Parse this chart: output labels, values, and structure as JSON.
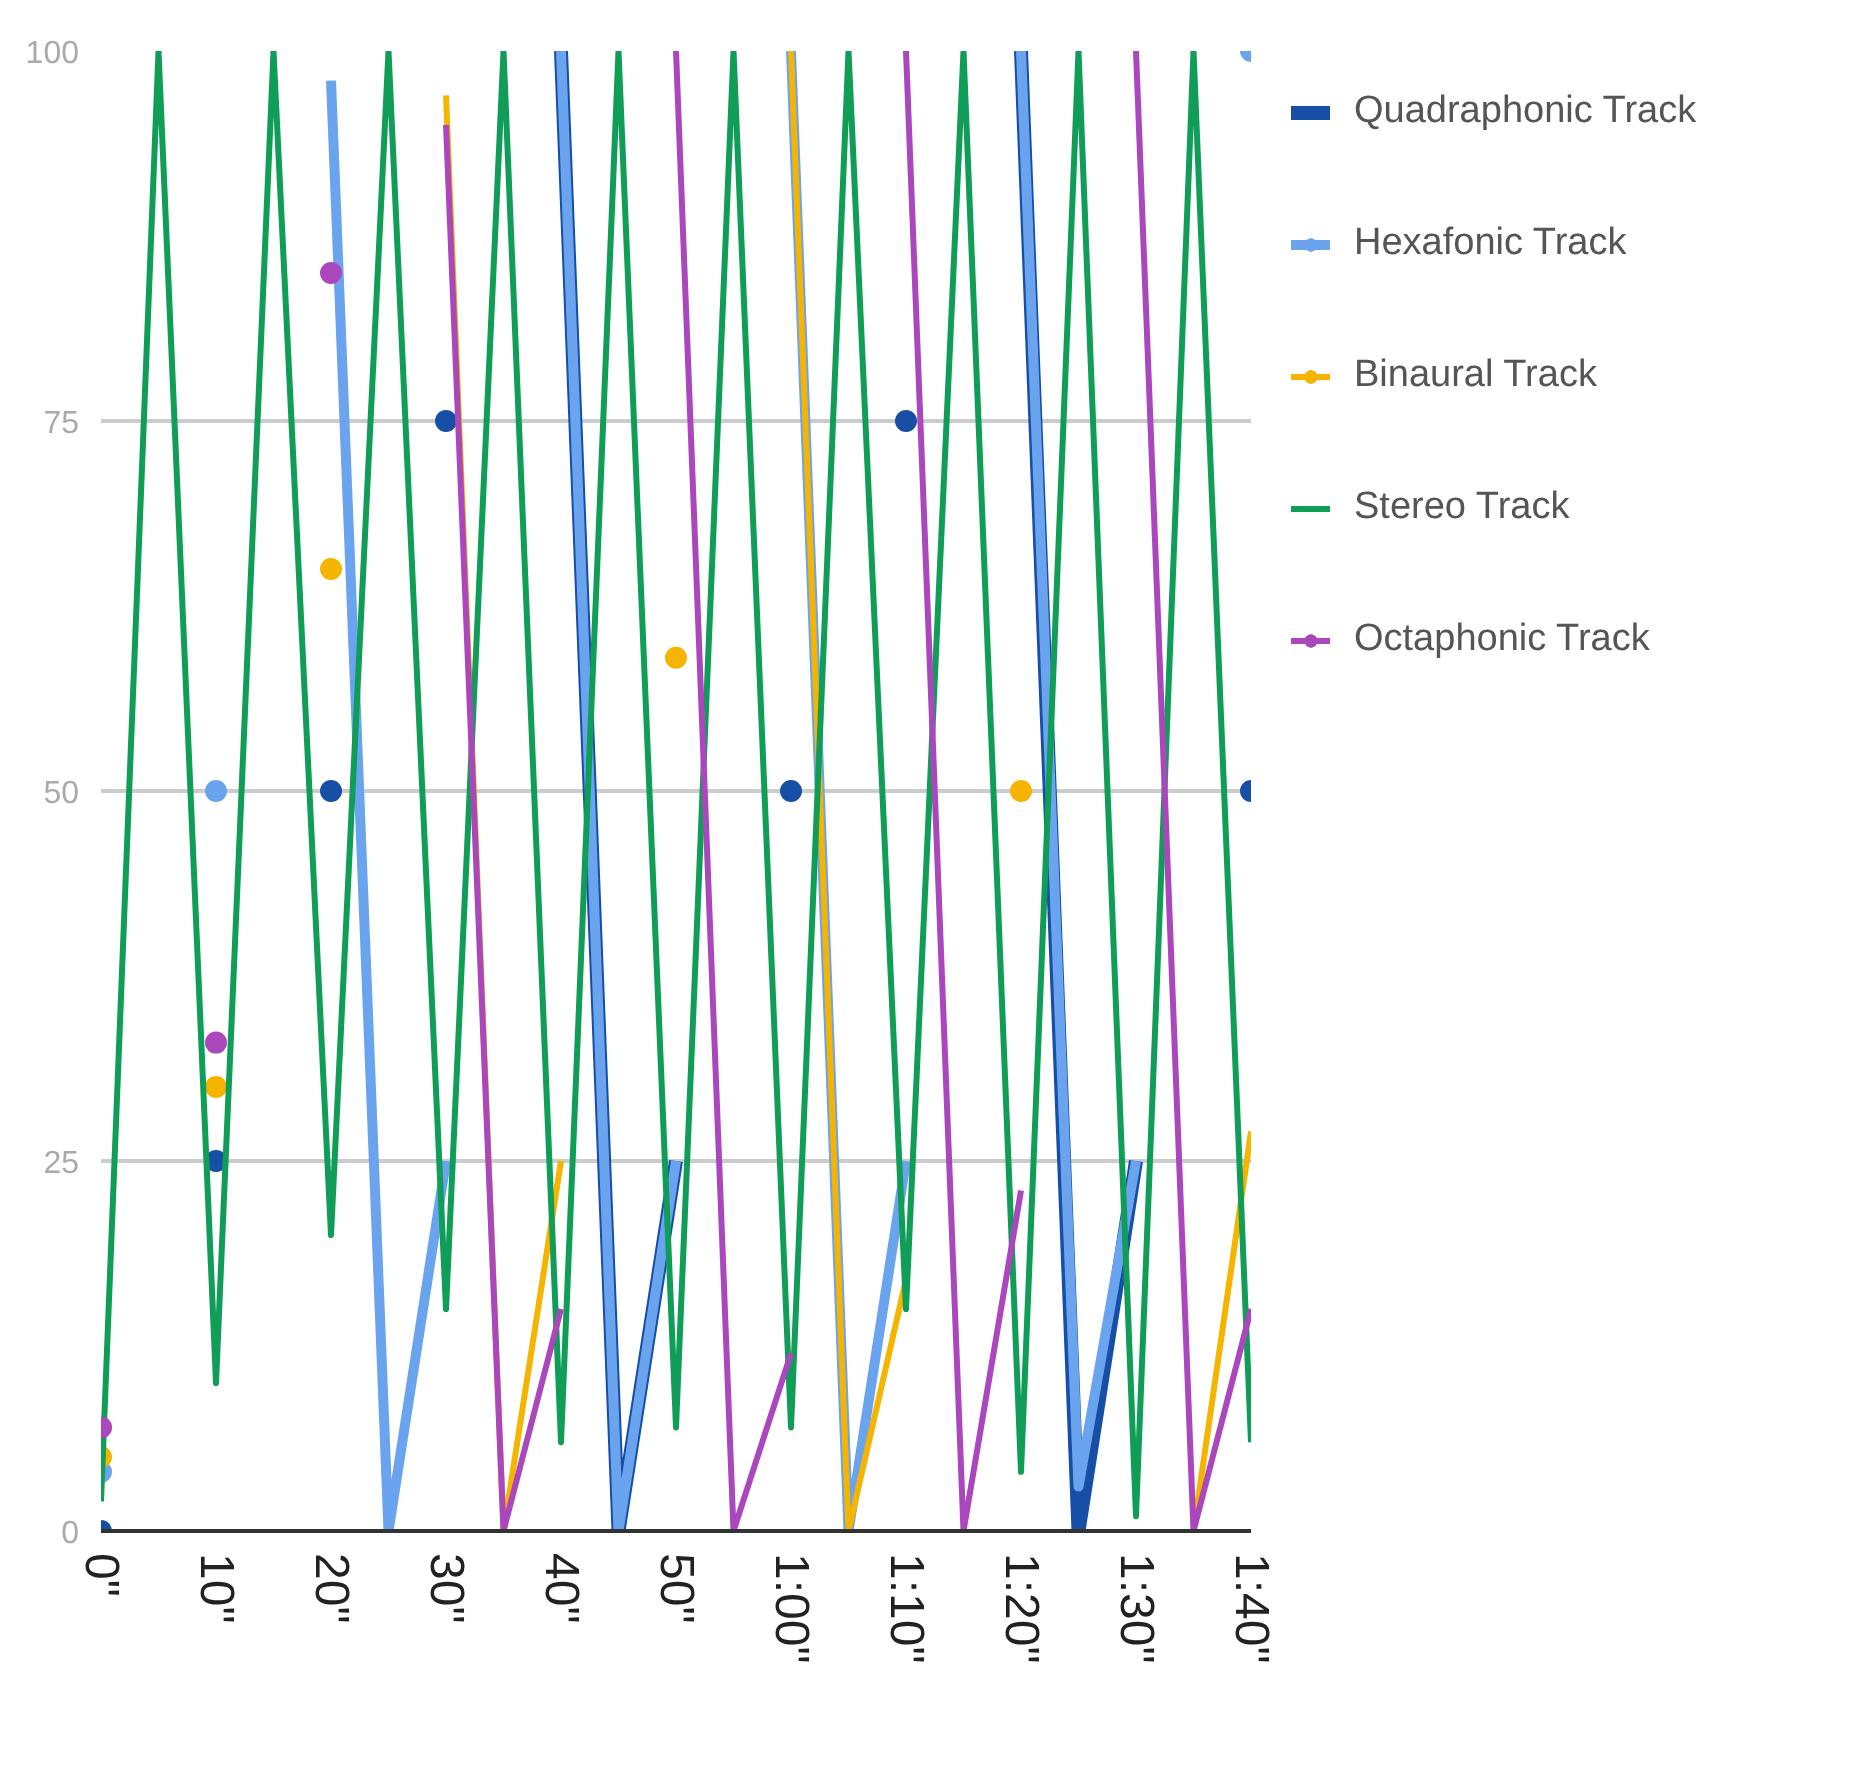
{
  "chart_data": {
    "type": "line",
    "x": [
      0,
      5,
      10,
      15,
      20,
      25,
      30,
      35,
      40,
      45,
      50,
      55,
      60,
      65,
      70,
      75,
      80,
      85,
      90,
      95,
      100
    ],
    "xlim": [
      0,
      100
    ],
    "xticks": [
      {
        "value": 0,
        "label": "0\""
      },
      {
        "value": 10,
        "label": "10\""
      },
      {
        "value": 20,
        "label": "20\""
      },
      {
        "value": 30,
        "label": "30\""
      },
      {
        "value": 40,
        "label": "40\""
      },
      {
        "value": 50,
        "label": "50\""
      },
      {
        "value": 60,
        "label": "1:00\""
      },
      {
        "value": 70,
        "label": "1:10\""
      },
      {
        "value": 80,
        "label": "1:20\""
      },
      {
        "value": 90,
        "label": "1:30\""
      },
      {
        "value": 100,
        "label": "1:40\""
      }
    ],
    "ylim": [
      0,
      100
    ],
    "yticks": [
      0,
      25,
      50,
      75,
      100
    ],
    "grid": "y",
    "legend": "right",
    "series": [
      {
        "name": "Quadraphonic Track",
        "color": "#174ea6",
        "values": [
          0,
          null,
          25,
          null,
          50,
          null,
          75,
          null,
          100,
          0,
          25,
          null,
          50,
          null,
          75,
          null,
          100,
          0,
          25,
          null,
          50
        ]
      },
      {
        "name": "Hexafonic Track",
        "color": "#6ba4ee",
        "values": [
          4,
          null,
          50,
          null,
          98,
          0,
          25,
          null,
          100,
          0,
          25,
          null,
          100,
          0,
          25,
          null,
          100,
          3,
          25,
          null,
          100
        ]
      },
      {
        "name": "Binaural Track",
        "color": "#f4b400",
        "values": [
          5,
          null,
          30,
          null,
          65,
          null,
          97,
          0,
          25,
          null,
          59,
          null,
          100,
          0,
          17,
          null,
          50,
          null,
          null,
          0,
          27
        ]
      },
      {
        "name": "Stereo Track",
        "color": "#0f9d58",
        "values": [
          2,
          100,
          10,
          100,
          20,
          100,
          15,
          100,
          6,
          100,
          7,
          100,
          7,
          100,
          15,
          100,
          4,
          100,
          1,
          100,
          6
        ]
      },
      {
        "name": "Octaphonic Track",
        "color": "#ab47bc",
        "values": [
          7,
          null,
          33,
          null,
          85,
          null,
          95,
          0,
          15,
          null,
          100,
          0,
          12,
          null,
          100,
          0,
          23,
          null,
          100,
          0,
          15
        ]
      }
    ]
  }
}
